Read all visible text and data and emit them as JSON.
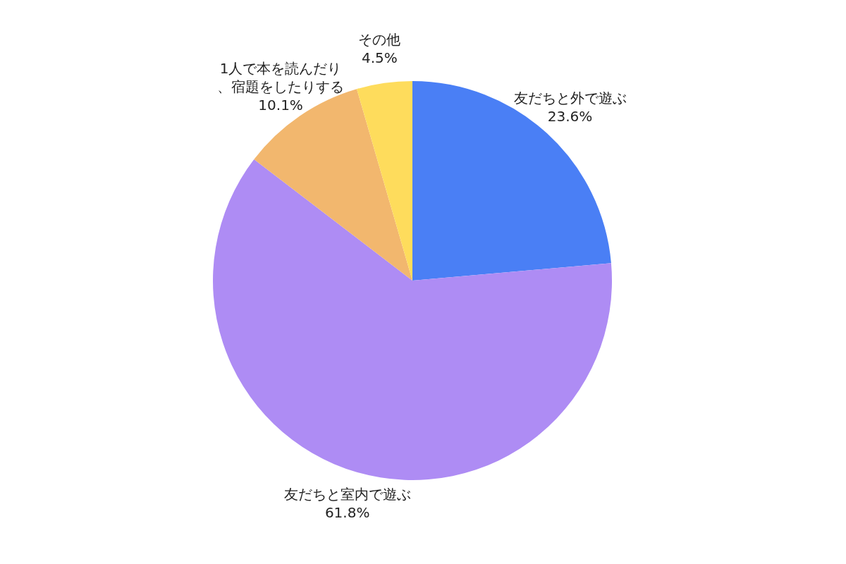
{
  "chart_data": {
    "type": "pie",
    "categories": [
      "友だちと外で遊ぶ",
      "友だちと室内で遊ぶ",
      "1人で本を読んだり、宿題をしたりする",
      "その他"
    ],
    "values": [
      23.6,
      61.8,
      10.1,
      4.5
    ],
    "value_labels": [
      "23.6%",
      "61.8%",
      "10.1%",
      "4.5%"
    ],
    "colors": [
      "#4a7ff5",
      "#ae8cf4",
      "#f2b76e",
      "#fedc5c"
    ],
    "legend": false
  }
}
